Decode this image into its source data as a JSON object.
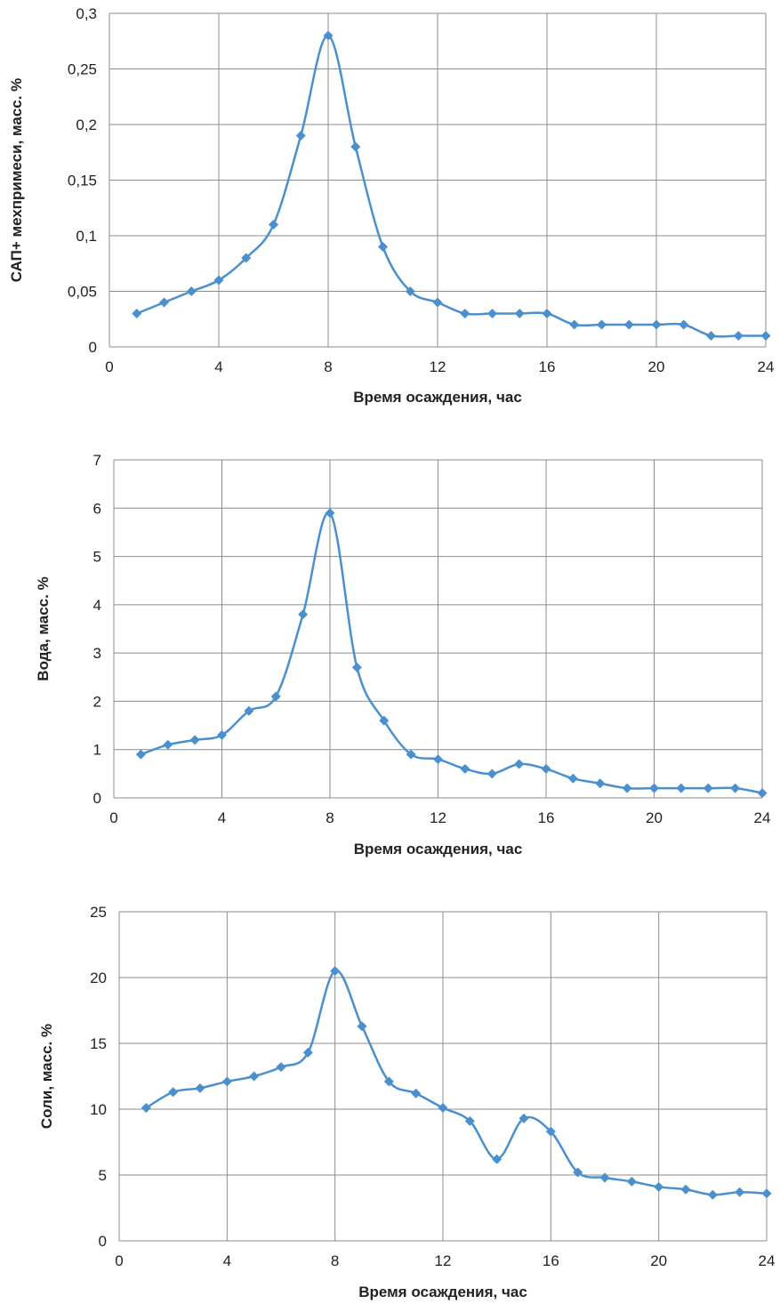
{
  "chart_data": [
    {
      "type": "line",
      "title": "",
      "xlabel": "Время осаждения, час",
      "ylabel": "САП+ мехпримеси, масс. %",
      "xlim": [
        0,
        24
      ],
      "ylim": [
        0,
        0.3
      ],
      "xticks": [
        0,
        4,
        8,
        12,
        16,
        20,
        24
      ],
      "xtick_labels": [
        "0",
        "4",
        "8",
        "12",
        "16",
        "20",
        "24"
      ],
      "yticks": [
        0,
        0.05,
        0.1,
        0.15,
        0.2,
        0.25,
        0.3
      ],
      "ytick_labels": [
        "0",
        "0,05",
        "0,1",
        "0,15",
        "0,2",
        "0,25",
        "0,3"
      ],
      "grid": true,
      "smooth": true,
      "color": "#4a90cf",
      "x": [
        1,
        2,
        3,
        4,
        5,
        6,
        7,
        8,
        9,
        10,
        11,
        12,
        13,
        14,
        15,
        16,
        17,
        18,
        19,
        20,
        21,
        22,
        23,
        24
      ],
      "values": [
        0.03,
        0.04,
        0.05,
        0.06,
        0.08,
        0.11,
        0.19,
        0.28,
        0.18,
        0.09,
        0.05,
        0.04,
        0.03,
        0.03,
        0.03,
        0.03,
        0.02,
        0.02,
        0.02,
        0.02,
        0.02,
        0.01,
        0.01,
        0.01
      ]
    },
    {
      "type": "line",
      "title": "",
      "xlabel": "Время осаждения, час",
      "ylabel": "Вода, масс. %",
      "xlim": [
        0,
        24
      ],
      "ylim": [
        0,
        7
      ],
      "xticks": [
        0,
        4,
        8,
        12,
        16,
        20,
        24
      ],
      "xtick_labels": [
        "0",
        "4",
        "8",
        "12",
        "16",
        "20",
        "24"
      ],
      "yticks": [
        0,
        1,
        2,
        3,
        4,
        5,
        6,
        7
      ],
      "ytick_labels": [
        "0",
        "1",
        "2",
        "3",
        "4",
        "5",
        "6",
        "7"
      ],
      "grid": true,
      "smooth": true,
      "color": "#4a90cf",
      "x": [
        1,
        2,
        3,
        4,
        5,
        6,
        7,
        8,
        9,
        10,
        11,
        12,
        13,
        14,
        15,
        16,
        17,
        18,
        19,
        20,
        21,
        22,
        23,
        24
      ],
      "values": [
        0.9,
        1.1,
        1.2,
        1.3,
        1.8,
        2.1,
        3.8,
        5.9,
        2.7,
        1.6,
        0.9,
        0.8,
        0.6,
        0.5,
        0.7,
        0.6,
        0.4,
        0.3,
        0.2,
        0.2,
        0.2,
        0.2,
        0.2,
        0.1
      ]
    },
    {
      "type": "line",
      "title": "",
      "xlabel": "Время осаждения, час",
      "ylabel": "Соли, масс. %",
      "xlim": [
        0,
        24
      ],
      "ylim": [
        0,
        25
      ],
      "xticks": [
        0,
        4,
        8,
        12,
        16,
        20,
        24
      ],
      "xtick_labels": [
        "0",
        "4",
        "8",
        "12",
        "16",
        "20",
        "24"
      ],
      "yticks": [
        0,
        5,
        10,
        15,
        20,
        25
      ],
      "ytick_labels": [
        "0",
        "5",
        "10",
        "15",
        "20",
        "25"
      ],
      "grid": true,
      "smooth": true,
      "color": "#4a90cf",
      "x": [
        1,
        2,
        3,
        4,
        5,
        6,
        7,
        8,
        9,
        10,
        11,
        12,
        13,
        14,
        15,
        16,
        17,
        18,
        19,
        20,
        21,
        22,
        23,
        24
      ],
      "values": [
        10.1,
        11.3,
        11.6,
        12.1,
        12.5,
        13.2,
        14.3,
        20.5,
        16.3,
        12.1,
        11.2,
        10.1,
        9.1,
        6.2,
        9.3,
        8.3,
        5.2,
        4.8,
        4.5,
        4.1,
        3.9,
        3.5,
        3.7,
        3.6
      ]
    }
  ]
}
